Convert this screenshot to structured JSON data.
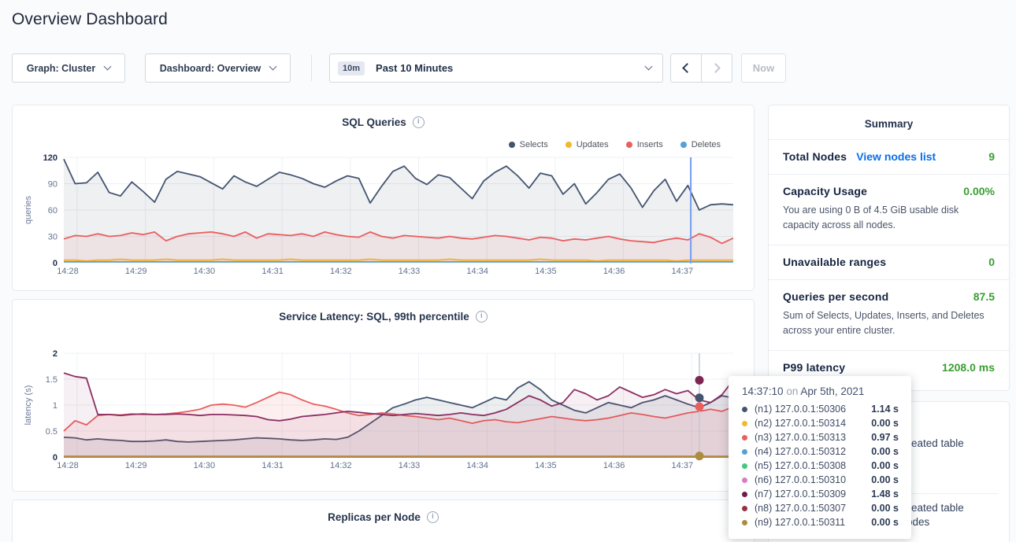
{
  "page": {
    "title": "Overview Dashboard"
  },
  "icons": {
    "info": "i"
  },
  "toolbar": {
    "graph_dropdown": {
      "label": "Graph: Cluster"
    },
    "dashboard_dropdown": {
      "label": "Dashboard: Overview"
    },
    "time_picker": {
      "badge": "10m",
      "label": "Past 10 Minutes"
    },
    "now_button": "Now"
  },
  "chart_data": [
    {
      "type": "area",
      "title": "SQL Queries",
      "ylabel": "queries",
      "ylim": [
        0,
        120
      ],
      "yticks": [
        0,
        30,
        60,
        90,
        120
      ],
      "xticks": [
        "14:28",
        "14:29",
        "14:30",
        "14:31",
        "14:32",
        "14:33",
        "14:34",
        "14:35",
        "14:36",
        "14:37"
      ],
      "legend_position": "top-right",
      "grid": true,
      "hover_time_x": "14:37:10",
      "series": [
        {
          "name": "Selects",
          "color": "#44546f",
          "fill": "rgba(68,84,111,0.09)",
          "values": [
            118,
            90,
            91,
            103,
            80,
            76,
            92,
            81,
            69,
            95,
            104,
            101,
            98,
            91,
            84,
            99,
            92,
            87,
            95,
            103,
            100,
            96,
            90,
            86,
            93,
            99,
            96,
            68,
            87,
            104,
            110,
            96,
            89,
            100,
            97,
            85,
            73,
            93,
            103,
            110,
            99,
            85,
            102,
            99,
            78,
            90,
            67,
            80,
            95,
            101,
            85,
            63,
            82,
            95,
            70,
            88,
            60,
            66,
            67,
            66
          ]
        },
        {
          "name": "Updates",
          "color": "#f0b92e",
          "fill": "rgba(240,185,46,0.15)",
          "values": [
            3,
            3,
            2,
            3,
            3,
            4,
            3,
            3,
            3,
            4,
            3,
            3,
            3,
            3,
            4,
            3,
            3,
            3,
            3,
            3,
            4,
            3,
            3,
            3,
            3,
            3,
            3,
            4,
            3,
            3,
            3,
            3,
            3,
            3,
            4,
            3,
            3,
            3,
            3,
            3,
            3,
            3,
            4,
            3,
            3,
            3,
            3,
            2,
            3,
            3,
            3,
            3,
            3,
            3,
            2,
            3,
            3,
            3,
            3,
            3
          ]
        },
        {
          "name": "Inserts",
          "color": "#ea5e5e",
          "fill": "rgba(234,94,94,0.09)",
          "values": [
            27,
            31,
            30,
            33,
            30,
            31,
            34,
            32,
            35,
            25,
            30,
            33,
            34,
            35,
            33,
            30,
            35,
            28,
            33,
            32,
            31,
            33,
            30,
            35,
            32,
            30,
            29,
            35,
            30,
            28,
            31,
            30,
            29,
            28,
            30,
            28,
            27,
            29,
            31,
            30,
            28,
            26,
            29,
            28,
            25,
            27,
            26,
            28,
            30,
            27,
            25,
            24,
            23,
            26,
            28,
            26,
            33,
            29,
            22,
            28
          ]
        },
        {
          "name": "Deletes",
          "color": "#56a0d6",
          "fill": "none",
          "values": [
            1,
            1
          ]
        }
      ]
    },
    {
      "type": "area",
      "title": "Service Latency: SQL, 99th percentile",
      "ylabel": "latency (s)",
      "ylim": [
        0,
        2.0
      ],
      "yticks": [
        0.0,
        0.5,
        1.0,
        1.5,
        2.0
      ],
      "xticks": [
        "14:28",
        "14:29",
        "14:30",
        "14:31",
        "14:32",
        "14:33",
        "14:34",
        "14:35",
        "14:36",
        "14:37"
      ],
      "grid": true,
      "hover_time_x": "14:37:10",
      "series": [
        {
          "name": "(n1) 127.0.0.1:50306",
          "color": "#44546f",
          "fill": "rgba(68,84,111,0.10)",
          "values": [
            0.38,
            0.37,
            0.33,
            0.35,
            0.33,
            0.32,
            0.3,
            0.3,
            0.31,
            0.33,
            0.3,
            0.29,
            0.3,
            0.31,
            0.32,
            0.33,
            0.35,
            0.37,
            0.36,
            0.35,
            0.33,
            0.32,
            0.33,
            0.35,
            0.34,
            0.38,
            0.5,
            0.65,
            0.8,
            0.95,
            1.02,
            1.1,
            1.15,
            1.1,
            1.05,
            1.0,
            0.95,
            1.05,
            1.15,
            1.1,
            1.33,
            1.45,
            1.3,
            1.1,
            1.0,
            0.9,
            0.85,
            0.95,
            1.05,
            1.0,
            0.95,
            1.05,
            1.1,
            1.18,
            1.1,
            1.02,
            0.95,
            1.05,
            1.18,
            1.14
          ]
        },
        {
          "name": "(n3) 127.0.0.1:50313",
          "color": "#ea5e5e",
          "fill": "rgba(234,94,94,0.10)",
          "values": [
            0.5,
            0.7,
            0.62,
            0.8,
            0.82,
            0.81,
            0.83,
            0.82,
            0.82,
            0.83,
            0.85,
            0.88,
            0.92,
            1.0,
            1.02,
            1.0,
            0.96,
            1.05,
            1.15,
            1.25,
            1.2,
            1.1,
            1.02,
            0.98,
            0.92,
            0.85,
            0.8,
            0.82,
            0.85,
            0.83,
            0.8,
            0.78,
            0.75,
            0.72,
            0.75,
            0.7,
            0.65,
            0.7,
            0.72,
            0.68,
            0.66,
            0.7,
            0.74,
            0.78,
            0.75,
            0.72,
            0.7,
            0.72,
            0.75,
            0.8,
            0.85,
            0.82,
            0.78,
            0.75,
            0.8,
            0.85,
            0.88,
            0.92,
            0.88,
            0.97
          ]
        },
        {
          "name": "(n7) 127.0.0.1:50309",
          "color": "#8c2f63",
          "fill": "rgba(140,47,99,0.08)",
          "values": [
            1.62,
            1.55,
            1.52,
            0.82,
            0.82,
            0.8,
            0.82,
            0.83,
            0.82,
            0.82,
            0.83,
            0.82,
            0.8,
            0.82,
            0.82,
            0.81,
            0.8,
            0.78,
            0.72,
            0.7,
            0.73,
            0.78,
            0.8,
            0.82,
            0.85,
            0.88,
            0.86,
            0.84,
            0.82,
            0.8,
            0.82,
            0.84,
            0.82,
            0.8,
            0.82,
            0.85,
            0.82,
            0.8,
            0.85,
            0.92,
            1.05,
            1.18,
            1.1,
            0.98,
            1.05,
            1.3,
            1.22,
            1.1,
            1.18,
            1.35,
            1.25,
            1.15,
            1.2,
            1.3,
            1.22,
            1.28,
            1.1,
            1.05,
            1.2,
            1.48
          ]
        },
        {
          "name": "(n2) 127.0.0.1:50314",
          "color": "#f0b92e",
          "fill": "none",
          "values": [
            0,
            0
          ]
        },
        {
          "name": "(n4) 127.0.0.1:50312",
          "color": "#56a0d6",
          "fill": "none",
          "values": [
            0,
            0
          ]
        },
        {
          "name": "(n5) 127.0.0.1:50308",
          "color": "#42c882",
          "fill": "none",
          "values": [
            0,
            0
          ]
        },
        {
          "name": "(n6) 127.0.0.1:50310",
          "color": "#d67ec4",
          "fill": "none",
          "values": [
            0,
            0
          ]
        },
        {
          "name": "(n8) 127.0.0.1:50307",
          "color": "#963341",
          "fill": "none",
          "values": [
            0,
            0
          ]
        },
        {
          "name": "(n9) 127.0.0.1:50311",
          "color": "#ad8c42",
          "fill": "none",
          "values": [
            0.015,
            0.015
          ]
        }
      ]
    },
    {
      "type": "line",
      "title": "Replicas per Node"
    }
  ],
  "summary": {
    "heading": "Summary",
    "total_nodes": {
      "label": "Total Nodes",
      "link": "View nodes list",
      "value": "9"
    },
    "capacity": {
      "label": "Capacity Usage",
      "value": "0.00%",
      "desc": "You are using 0 B of 4.5 GiB usable disk capacity across all nodes."
    },
    "unavailable": {
      "label": "Unavailable ranges",
      "value": "0"
    },
    "qps": {
      "label": "Queries per second",
      "value": "87.5",
      "desc": "Sum of Selects, Updates, Inserts, and Deletes across your entire cluster."
    },
    "p99": {
      "label": "P99 latency",
      "value": "1208.0 ms"
    }
  },
  "events": {
    "visible_fragments": [
      "eated table",
      "eated table",
      "odes"
    ]
  },
  "tooltip": {
    "time": "14:37:10",
    "on": "on",
    "date": "Apr 5th, 2021",
    "rows": [
      {
        "color": "#44546f",
        "label": "(n1) 127.0.0.1:50306",
        "value": "1.14 s"
      },
      {
        "color": "#f0b92e",
        "label": "(n2) 127.0.0.1:50314",
        "value": "0.00 s"
      },
      {
        "color": "#ea5e5e",
        "label": "(n3) 127.0.0.1:50313",
        "value": "0.97 s"
      },
      {
        "color": "#56a0d6",
        "label": "(n4) 127.0.0.1:50312",
        "value": "0.00 s"
      },
      {
        "color": "#42c882",
        "label": "(n5) 127.0.0.1:50308",
        "value": "0.00 s"
      },
      {
        "color": "#d67ec4",
        "label": "(n6) 127.0.0.1:50310",
        "value": "0.00 s"
      },
      {
        "color": "#6e1d44",
        "label": "(n7) 127.0.0.1:50309",
        "value": "1.48 s"
      },
      {
        "color": "#963341",
        "label": "(n8) 127.0.0.1:50307",
        "value": "0.00 s"
      },
      {
        "color": "#ad8c42",
        "label": "(n9) 127.0.0.1:50311",
        "value": "0.00 s"
      }
    ]
  }
}
